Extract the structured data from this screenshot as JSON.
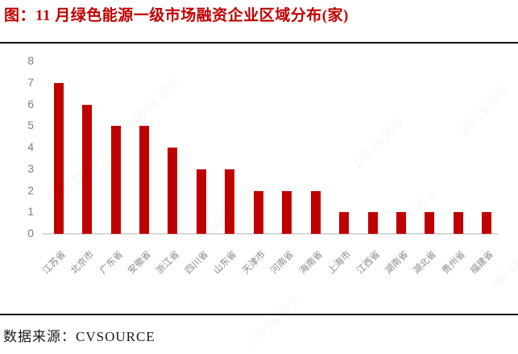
{
  "title": "图：11 月绿色能源一级市场融资企业区域分布(家)",
  "source": "数据来源：CVSOURCE",
  "watermark": "160 28 30 5",
  "colors": {
    "bar": "#C00000",
    "title_text": "#C00000",
    "y_tick_text": "#808080",
    "x_tick_text": "#8A8A8A",
    "baseline": "#D9D9D9",
    "divider": "#111111",
    "source_text": "#1A1A1A"
  },
  "chart_data": {
    "type": "bar",
    "title": "图：11 月绿色能源一级市场融资企业区域分布(家)",
    "categories": [
      "江苏省",
      "北京市",
      "广东省",
      "安徽省",
      "浙江省",
      "四川省",
      "山东省",
      "天津市",
      "河南省",
      "海南省",
      "上海市",
      "江西省",
      "湖南省",
      "湖北省",
      "贵州省",
      "福建省"
    ],
    "values": [
      7,
      6,
      5,
      5,
      4,
      3,
      3,
      2,
      2,
      2,
      1,
      1,
      1,
      1,
      1,
      1
    ],
    "xlabel": "",
    "ylabel": "",
    "ylim": [
      0,
      8
    ],
    "yticks": [
      0,
      1,
      2,
      3,
      4,
      5,
      6,
      7,
      8
    ],
    "grid": false,
    "legend": "none"
  }
}
